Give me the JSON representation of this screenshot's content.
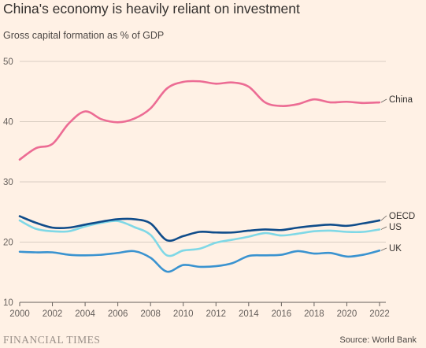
{
  "header": {
    "title": "China's economy is heavily reliant on investment",
    "subtitle": "Gross capital formation as % of GDP"
  },
  "footer": {
    "brand": "FINANCIAL TIMES",
    "source": "Source: World Bank"
  },
  "colors": {
    "background": "#fff1e5",
    "China": "#ec6c94",
    "OECD": "#0f4c8a",
    "US": "#7fd8e6",
    "UK": "#3a93d0",
    "grid": "#d9cdc2"
  },
  "chart_data": {
    "type": "line",
    "title": "China's economy is heavily reliant on investment",
    "subtitle": "Gross capital formation as % of GDP",
    "xlabel": "",
    "ylabel": "",
    "xlim": [
      2000,
      2022
    ],
    "ylim": [
      10,
      50
    ],
    "x_ticks": [
      "2000",
      "2002",
      "2004",
      "2006",
      "2008",
      "2010",
      "2012",
      "2014",
      "2016",
      "2018",
      "2020",
      "2022"
    ],
    "y_ticks": [
      "10",
      "20",
      "30",
      "40",
      "50"
    ],
    "grid": "horizontal",
    "legend": "direct labels at right end of lines",
    "x": [
      2000,
      2001,
      2002,
      2003,
      2004,
      2005,
      2006,
      2007,
      2008,
      2009,
      2010,
      2011,
      2012,
      2013,
      2014,
      2015,
      2016,
      2017,
      2018,
      2019,
      2020,
      2021,
      2022
    ],
    "series": [
      {
        "name": "China",
        "values": [
          33.7,
          35.6,
          36.3,
          39.7,
          41.7,
          40.4,
          39.9,
          40.5,
          42.2,
          45.5,
          46.6,
          46.7,
          46.3,
          46.5,
          45.8,
          43.2,
          42.6,
          42.9,
          43.7,
          43.2,
          43.3,
          43.1,
          43.2
        ]
      },
      {
        "name": "OECD",
        "values": [
          24.3,
          23.2,
          22.4,
          22.4,
          22.9,
          23.4,
          23.8,
          23.8,
          23.1,
          20.3,
          21.0,
          21.7,
          21.6,
          21.6,
          21.9,
          22.1,
          22.0,
          22.4,
          22.7,
          22.9,
          22.7,
          23.1,
          23.6
        ]
      },
      {
        "name": "US",
        "values": [
          23.6,
          22.2,
          21.8,
          21.8,
          22.6,
          23.2,
          23.5,
          22.5,
          21.2,
          17.8,
          18.6,
          18.9,
          19.9,
          20.4,
          20.9,
          21.5,
          21.1,
          21.4,
          21.8,
          21.9,
          21.7,
          21.7,
          22.1
        ]
      },
      {
        "name": "UK",
        "values": [
          18.4,
          18.3,
          18.3,
          17.9,
          17.8,
          17.9,
          18.2,
          18.5,
          17.4,
          15.1,
          16.2,
          15.9,
          16.0,
          16.5,
          17.7,
          17.8,
          17.9,
          18.5,
          18.1,
          18.2,
          17.6,
          17.9,
          18.6
        ]
      }
    ]
  }
}
